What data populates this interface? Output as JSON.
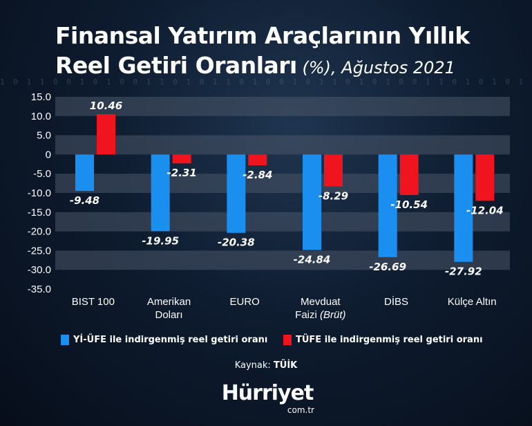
{
  "header": {
    "title_line1": "Finansal Yatırım Araçlarının Yıllık",
    "title_line2": "Reel Getiri Oranları",
    "title_suffix": " (%), Ağustos 2021"
  },
  "chart_data": {
    "type": "bar",
    "title": "Finansal Yatırım Araçlarının Yıllık Reel Getiri Oranları (%), Ağustos 2021",
    "categories": [
      [
        "BIST 100"
      ],
      [
        "Amerikan",
        "Doları"
      ],
      [
        "EURO"
      ],
      [
        "Mevduat",
        "Faizi (Brüt)"
      ],
      [
        "DİBS"
      ],
      [
        "Külçe Altın"
      ]
    ],
    "series": [
      {
        "name": "Yİ-ÜFE ile indirgenmiş reel getiri oranı",
        "color": "#1b8ff0",
        "values": [
          -9.48,
          -19.95,
          -20.38,
          -24.84,
          -26.69,
          -27.92
        ],
        "labels": [
          "-9.48",
          "-19.95",
          "-20.38",
          "-24.84",
          "-26.69",
          "-27.92"
        ]
      },
      {
        "name": "TÜFE ile indirgenmiş reel getiri oranı",
        "color": "#f0141e",
        "values": [
          10.46,
          -2.31,
          -2.84,
          -8.29,
          -10.54,
          -12.04
        ],
        "labels": [
          "10.46",
          "-2.31",
          "-2.84",
          "-8.29",
          "-10.54",
          "-12.04"
        ]
      }
    ],
    "ylim": [
      -35,
      15
    ],
    "yticks": [
      15,
      10,
      5,
      0,
      -5,
      -10,
      -15,
      -20,
      -25,
      -30,
      -35
    ],
    "ytick_labels": [
      "15.0",
      "10.0",
      "5.0",
      "0",
      "-5.0",
      "-10.0",
      "-15.0",
      "-20.0",
      "-25.0",
      "-30.0",
      "-35.0"
    ],
    "grid": "alternating horizontal bands",
    "legend": "bottom"
  },
  "source": {
    "label": "Kaynak: ",
    "value": "TÜİK"
  },
  "brand": {
    "name": "Hürriyet",
    "domain": "com.tr"
  }
}
